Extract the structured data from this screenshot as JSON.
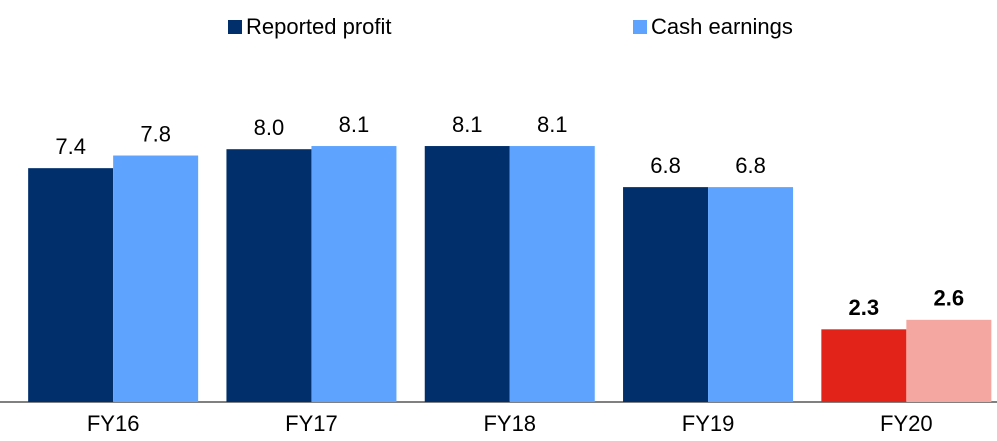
{
  "chart_data": {
    "type": "bar",
    "categories": [
      "FY16",
      "FY17",
      "FY18",
      "FY19",
      "FY20"
    ],
    "series": [
      {
        "name": "Reported profit",
        "color": "#002f6c",
        "colors": [
          "#002f6c",
          "#002f6c",
          "#002f6c",
          "#002f6c",
          "#e2231a"
        ],
        "values": [
          7.4,
          8.0,
          8.1,
          6.8,
          2.3
        ],
        "value_labels": [
          "7.4",
          "8.0",
          "8.1",
          "6.8",
          "2.3"
        ]
      },
      {
        "name": "Cash earnings",
        "color": "#5ea4ff",
        "colors": [
          "#5ea4ff",
          "#5ea4ff",
          "#5ea4ff",
          "#5ea4ff",
          "#f4a6a0"
        ],
        "values": [
          7.8,
          8.1,
          8.1,
          6.8,
          2.6
        ],
        "value_labels": [
          "7.8",
          "8.1",
          "8.1",
          "6.8",
          "2.6"
        ]
      }
    ],
    "ylim": [
      0,
      10
    ],
    "legend": "top"
  }
}
